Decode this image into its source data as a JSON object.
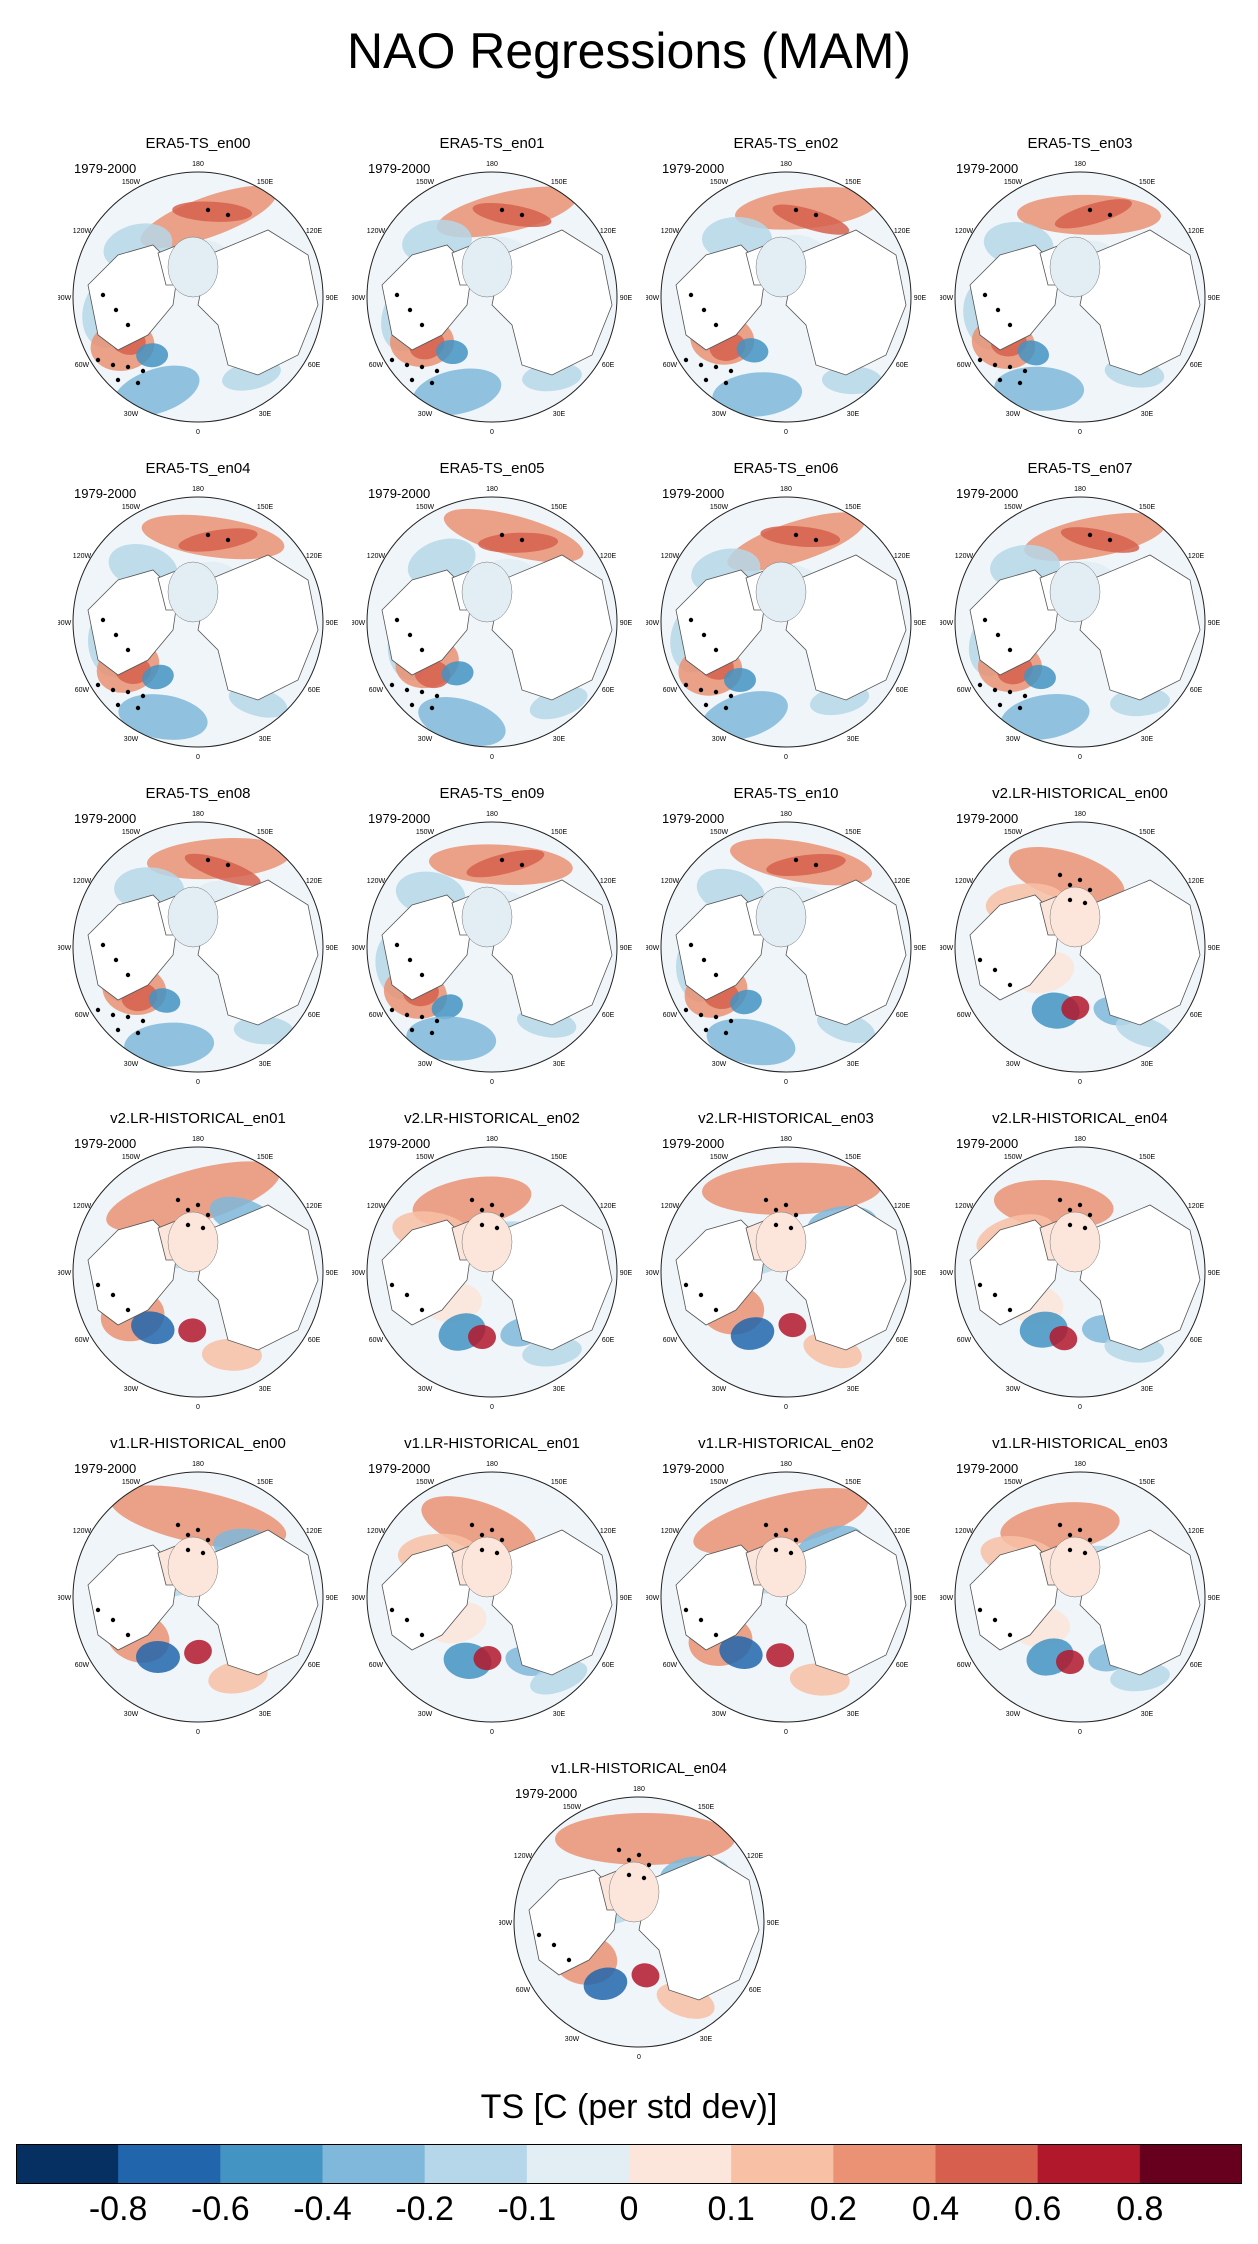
{
  "title": "NAO Regressions (MAM)",
  "period": "1979-2000",
  "panels": [
    {
      "title": "ERA5-TS_en00",
      "type": "era5"
    },
    {
      "title": "ERA5-TS_en01",
      "type": "era5"
    },
    {
      "title": "ERA5-TS_en02",
      "type": "era5"
    },
    {
      "title": "ERA5-TS_en03",
      "type": "era5"
    },
    {
      "title": "ERA5-TS_en04",
      "type": "era5"
    },
    {
      "title": "ERA5-TS_en05",
      "type": "era5"
    },
    {
      "title": "ERA5-TS_en06",
      "type": "era5"
    },
    {
      "title": "ERA5-TS_en07",
      "type": "era5"
    },
    {
      "title": "ERA5-TS_en08",
      "type": "era5"
    },
    {
      "title": "ERA5-TS_en09",
      "type": "era5"
    },
    {
      "title": "ERA5-TS_en10",
      "type": "era5"
    },
    {
      "title": "v2.LR-HISTORICAL_en00",
      "type": "model"
    },
    {
      "title": "v2.LR-HISTORICAL_en01",
      "type": "model"
    },
    {
      "title": "v2.LR-HISTORICAL_en02",
      "type": "model"
    },
    {
      "title": "v2.LR-HISTORICAL_en03",
      "type": "model"
    },
    {
      "title": "v2.LR-HISTORICAL_en04",
      "type": "model"
    },
    {
      "title": "v1.LR-HISTORICAL_en00",
      "type": "model"
    },
    {
      "title": "v1.LR-HISTORICAL_en01",
      "type": "model"
    },
    {
      "title": "v1.LR-HISTORICAL_en02",
      "type": "model"
    },
    {
      "title": "v1.LR-HISTORICAL_en03",
      "type": "model"
    },
    {
      "title": "v1.LR-HISTORICAL_en04",
      "type": "model"
    }
  ],
  "lon_labels": [
    "180",
    "150E",
    "120E",
    "90E",
    "60E",
    "30E",
    "0",
    "30W",
    "60W",
    "90W",
    "120W",
    "150W"
  ],
  "colorbar": {
    "title": "TS [C (per std dev)]",
    "labels": [
      "-0.8",
      "-0.6",
      "-0.4",
      "-0.2",
      "-0.1",
      "0",
      "0.1",
      "0.2",
      "0.4",
      "0.6",
      "0.8"
    ],
    "colors": [
      "#053061",
      "#2166ac",
      "#4393c3",
      "#7fb8da",
      "#b6d7e9",
      "#e2edf4",
      "#fce5da",
      "#f8c0a4",
      "#ea9273",
      "#d6604d",
      "#b2182b",
      "#67001f"
    ]
  },
  "chart_data": {
    "type": "heatmap",
    "title": "NAO Regressions (MAM)",
    "variable": "TS [C (per std dev)]",
    "period": "1979-2000",
    "projection": "north polar stereographic",
    "levels": [
      -0.8,
      -0.6,
      -0.4,
      -0.2,
      -0.1,
      0,
      0.1,
      0.2,
      0.4,
      0.6,
      0.8
    ]
  }
}
